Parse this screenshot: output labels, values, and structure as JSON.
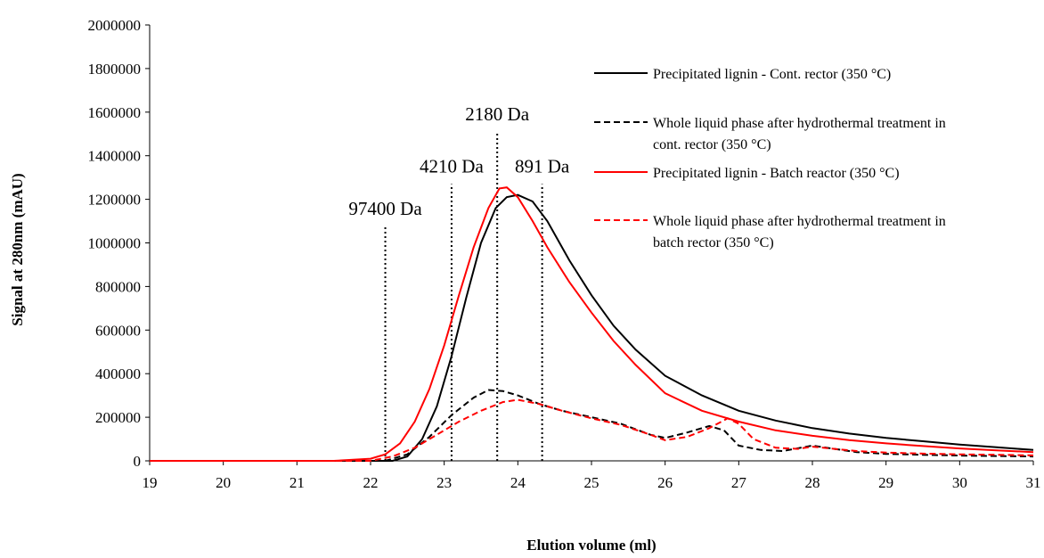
{
  "chart_data": {
    "type": "line",
    "xlabel": "Elution volume (ml)",
    "ylabel": "Signal at 280nm (mAU)",
    "xlim": [
      19,
      31
    ],
    "ylim": [
      0,
      2000000
    ],
    "xticks": [
      "19",
      "20",
      "21",
      "22",
      "23",
      "24",
      "25",
      "26",
      "27",
      "28",
      "29",
      "30",
      "31"
    ],
    "yticks": [
      "0",
      "200000",
      "400000",
      "600000",
      "800000",
      "1000000",
      "1200000",
      "1400000",
      "1600000",
      "1800000",
      "2000000"
    ],
    "grid": false,
    "legend_position": "top-right",
    "series": [
      {
        "name": "Precipitated lignin - Cont. rector (350 °C)",
        "color": "#000000",
        "style": "solid",
        "points": [
          [
            19,
            0
          ],
          [
            22,
            0
          ],
          [
            22.3,
            0
          ],
          [
            22.5,
            20000
          ],
          [
            22.7,
            100000
          ],
          [
            22.9,
            250000
          ],
          [
            23.1,
            480000
          ],
          [
            23.3,
            750000
          ],
          [
            23.5,
            1000000
          ],
          [
            23.7,
            1160000
          ],
          [
            23.85,
            1210000
          ],
          [
            24,
            1220000
          ],
          [
            24.2,
            1190000
          ],
          [
            24.4,
            1100000
          ],
          [
            24.7,
            920000
          ],
          [
            25,
            760000
          ],
          [
            25.3,
            620000
          ],
          [
            25.6,
            510000
          ],
          [
            26,
            390000
          ],
          [
            26.5,
            300000
          ],
          [
            27,
            230000
          ],
          [
            27.5,
            185000
          ],
          [
            28,
            150000
          ],
          [
            28.5,
            125000
          ],
          [
            29,
            105000
          ],
          [
            29.5,
            90000
          ],
          [
            30,
            75000
          ],
          [
            30.5,
            62000
          ],
          [
            31,
            50000
          ]
        ]
      },
      {
        "name": "Whole liquid phase after hydrothermal treatment in cont. rector  (350 °C)",
        "color": "#000000",
        "style": "dashed",
        "points": [
          [
            19,
            0
          ],
          [
            22.2,
            0
          ],
          [
            22.5,
            30000
          ],
          [
            22.8,
            110000
          ],
          [
            23.1,
            210000
          ],
          [
            23.4,
            290000
          ],
          [
            23.6,
            325000
          ],
          [
            23.8,
            320000
          ],
          [
            24,
            300000
          ],
          [
            24.3,
            260000
          ],
          [
            24.6,
            230000
          ],
          [
            25,
            200000
          ],
          [
            25.4,
            170000
          ],
          [
            25.8,
            120000
          ],
          [
            26,
            105000
          ],
          [
            26.3,
            130000
          ],
          [
            26.6,
            160000
          ],
          [
            26.8,
            140000
          ],
          [
            27,
            70000
          ],
          [
            27.3,
            50000
          ],
          [
            27.6,
            45000
          ],
          [
            28,
            70000
          ],
          [
            28.3,
            55000
          ],
          [
            28.6,
            40000
          ],
          [
            29,
            32000
          ],
          [
            29.5,
            28000
          ],
          [
            30,
            24000
          ],
          [
            30.5,
            22000
          ],
          [
            31,
            20000
          ]
        ]
      },
      {
        "name": "Precipitated lignin - Batch reactor (350 °C)",
        "color": "#ff0000",
        "style": "solid",
        "points": [
          [
            19,
            0
          ],
          [
            21.5,
            0
          ],
          [
            22,
            10000
          ],
          [
            22.2,
            30000
          ],
          [
            22.4,
            80000
          ],
          [
            22.6,
            180000
          ],
          [
            22.8,
            330000
          ],
          [
            23,
            530000
          ],
          [
            23.2,
            760000
          ],
          [
            23.4,
            980000
          ],
          [
            23.6,
            1160000
          ],
          [
            23.75,
            1250000
          ],
          [
            23.85,
            1255000
          ],
          [
            24,
            1210000
          ],
          [
            24.2,
            1100000
          ],
          [
            24.4,
            980000
          ],
          [
            24.7,
            820000
          ],
          [
            25,
            680000
          ],
          [
            25.3,
            550000
          ],
          [
            25.6,
            440000
          ],
          [
            26,
            310000
          ],
          [
            26.5,
            230000
          ],
          [
            27,
            180000
          ],
          [
            27.5,
            140000
          ],
          [
            28,
            115000
          ],
          [
            28.5,
            95000
          ],
          [
            29,
            80000
          ],
          [
            29.5,
            68000
          ],
          [
            30,
            57000
          ],
          [
            30.5,
            48000
          ],
          [
            31,
            40000
          ]
        ]
      },
      {
        "name": "Whole liquid phase after hydrothermal treatment in batch rector  (350 °C)",
        "color": "#ff0000",
        "style": "dashed",
        "points": [
          [
            19,
            0
          ],
          [
            22,
            0
          ],
          [
            22.3,
            20000
          ],
          [
            22.6,
            60000
          ],
          [
            22.9,
            120000
          ],
          [
            23.2,
            180000
          ],
          [
            23.5,
            230000
          ],
          [
            23.8,
            270000
          ],
          [
            24,
            280000
          ],
          [
            24.3,
            260000
          ],
          [
            24.6,
            230000
          ],
          [
            25,
            195000
          ],
          [
            25.4,
            165000
          ],
          [
            25.8,
            120000
          ],
          [
            26,
            95000
          ],
          [
            26.3,
            110000
          ],
          [
            26.6,
            150000
          ],
          [
            26.85,
            195000
          ],
          [
            27,
            170000
          ],
          [
            27.2,
            100000
          ],
          [
            27.5,
            60000
          ],
          [
            27.8,
            55000
          ],
          [
            28,
            65000
          ],
          [
            28.3,
            55000
          ],
          [
            28.6,
            45000
          ],
          [
            29,
            38000
          ],
          [
            29.5,
            33000
          ],
          [
            30,
            30000
          ],
          [
            30.5,
            28000
          ],
          [
            31,
            25000
          ]
        ]
      }
    ],
    "reference_lines": [
      {
        "x": 22.2,
        "ymax": 1075000,
        "label": "97400 Da"
      },
      {
        "x": 23.1,
        "ymax": 1270000,
        "label": "4210 Da"
      },
      {
        "x": 23.72,
        "ymax": 1510000,
        "label": "2180 Da"
      },
      {
        "x": 24.33,
        "ymax": 1270000,
        "label": "891 Da"
      }
    ]
  }
}
